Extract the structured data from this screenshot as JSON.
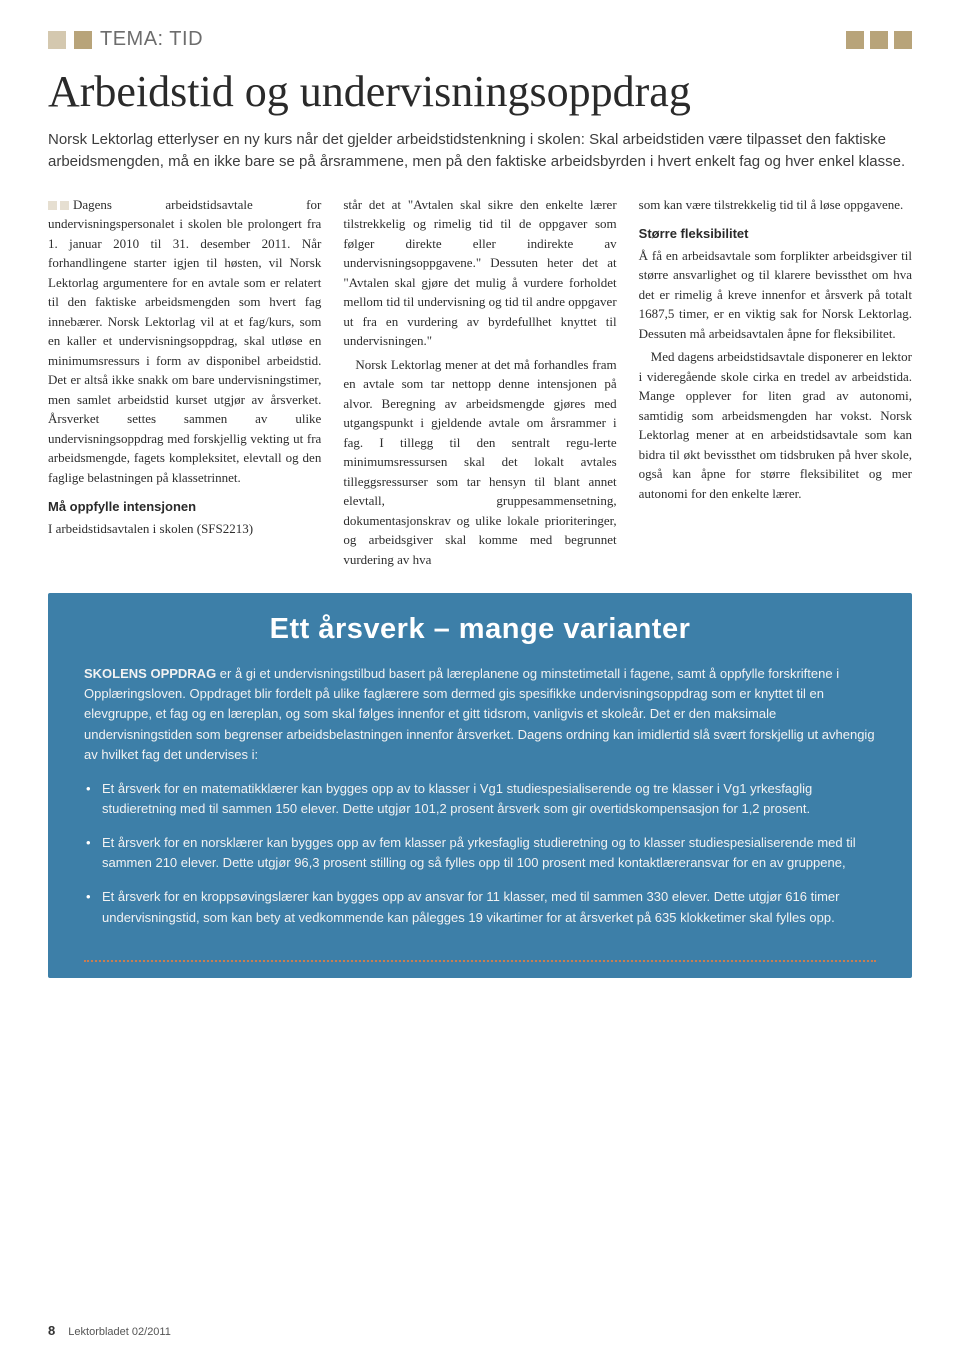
{
  "header": {
    "section_label": "TEMA: TID",
    "squares_color": "#b8a47a"
  },
  "article": {
    "title": "Arbeidstid og undervisningsoppdrag",
    "intro": "Norsk Lektorlag etterlyser en ny kurs når det gjelder arbeidstidstenkning i skolen: Skal arbeidstiden være tilpasset den faktiske arbeidsmengden, må en ikke bare se på årsrammene, men på den faktiske arbeidsbyrden i hvert enkelt fag og hver enkel klasse.",
    "col1_p1": "Dagens arbeidstidsavtale for undervisningspersonalet i skolen ble prolongert fra 1. januar 2010 til 31. desember 2011. Når forhandlingene starter igjen til høsten, vil Norsk Lektorlag argumentere for en avtale som er relatert til den faktiske arbeidsmengden som hvert fag innebærer. Norsk Lektorlag vil at et fag/kurs, som en kaller et undervisningsoppdrag, skal utløse en minimumsressurs i form av disponibel arbeidstid. Det er altså ikke snakk om bare undervisningstimer, men samlet arbeidstid kurset utgjør av årsverket. Årsverket settes sammen av ulike undervisningsoppdrag med forskjellig vekting ut fra arbeidsmengde, fagets kompleksitet, elevtall og den faglige belastningen på klassetrinnet.",
    "col1_sub1": "Må oppfylle intensjonen",
    "col1_p2": "I arbeidstidsavtalen i skolen (SFS2213)",
    "col2_p1": "står det at \"Avtalen skal sikre den enkelte lærer tilstrekkelig og rimelig tid til de oppgaver som følger direkte eller indirekte av undervisningsoppgavene.\" Dessuten heter det at \"Avtalen skal gjøre det mulig å vurdere forholdet mellom tid til undervisning og tid til andre oppgaver ut fra en vurdering av byrdefullhet knyttet til undervisningen.\"",
    "col2_p2": "Norsk Lektorlag mener at det må forhandles fram en avtale som tar nettopp denne intensjonen på alvor. Beregning av arbeidsmengde gjøres med utgangspunkt i gjeldende avtale om årsrammer i fag. I tillegg til den sentralt regu-lerte minimumsressursen skal det lokalt avtales tilleggsressurser som tar hensyn til blant annet elevtall, gruppesammensetning, dokumentasjonskrav og ulike lokale prioriteringer, og arbeidsgiver skal komme med begrunnet vurdering av hva",
    "col3_p1": "som kan være tilstrekkelig tid til å løse oppgavene.",
    "col3_sub1": "Større fleksibilitet",
    "col3_p2": "Å få en arbeidsavtale som forplikter arbeidsgiver til større ansvarlighet og til klarere bevissthet om hva det er rimelig å kreve innenfor et årsverk på totalt 1687,5 timer, er en viktig sak for Norsk Lektorlag. Dessuten må arbeidsavtalen åpne for fleksibilitet.",
    "col3_p3": "Med dagens arbeidstidsavtale disponerer en lektor i videregående skole cirka en tredel av arbeidstida. Mange opplever for liten grad av autonomi, samtidig som arbeidsmengden har vokst. Norsk Lektorlag mener at en arbeidstidsavtale som kan bidra til økt bevissthet om tidsbruken på hver skole, også kan åpne for større fleksibilitet og mer autonomi for den enkelte lærer."
  },
  "bluebox": {
    "title": "Ett årsverk – mange varianter",
    "lead_bold": "SKOLENS OPPDRAG",
    "lead_text": " er å gi et undervisningstilbud basert på læreplanene og minstetimetall i fagene, samt å oppfylle forskriftene i Opplæringsloven. Oppdraget blir fordelt på ulike faglærere som dermed gis spesifikke undervisningsoppdrag som er knyttet til en elevgruppe, et fag og en læreplan, og som skal følges innenfor et gitt tidsrom, vanligvis et skoleår. Det er den maksimale undervisningstiden som begrenser arbeidsbelastningen innenfor årsverket. Dagens ordning kan imidlertid slå svært forskjellig ut avhengig av hvilket fag det undervises i:",
    "bullets": [
      "Et årsverk for en matematikklærer kan bygges opp av to klasser i Vg1 studiespesialiserende og tre klasser i Vg1 yrkesfaglig studieretning med til sammen 150 elever. Dette utgjør 101,2 prosent årsverk som gir overtidskompensasjon for 1,2 prosent.",
      "Et årsverk for en norsklærer kan bygges opp av fem klasser på yrkesfaglig studieretning og to klasser studiespesialiserende med til sammen 210 elever. Dette utgjør 96,3 prosent stilling og så fylles opp til 100 prosent med kontaktlæreransvar for en av gruppene,",
      "Et årsverk for en kroppsøvingslærer kan bygges opp av ansvar for 11 klasser, med til sammen 330 elever. Dette utgjør 616 timer undervisningstid, som kan bety at vedkommende kan pålegges 19 vikartimer for at årsverket på 635 klokketimer skal fylles opp."
    ],
    "background_color": "#3d7fa8",
    "dot_border_color": "#c97d52"
  },
  "footer": {
    "page_number": "8",
    "publication": "Lektorbladet 02/2011"
  }
}
